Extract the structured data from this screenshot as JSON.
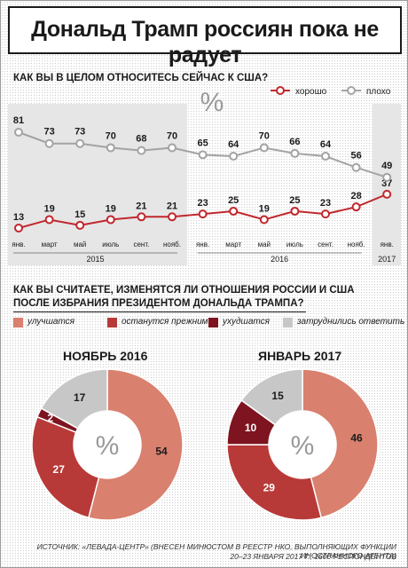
{
  "title": "Дональд Трамп россиян пока не радует",
  "question1": "КАК ВЫ В ЦЕЛОМ ОТНОСИТЕСЬ СЕЙЧАС К США?",
  "question2_line1": "КАК ВЫ СЧИТАЕТЕ, ИЗМЕНЯТСЯ ЛИ ОТНОШЕНИЯ РОССИИ И США",
  "question2_line2": "ПОСЛЕ ИЗБРАНИЯ ПРЕЗИДЕНТОМ ДОНАЛЬДА ТРАМПА?",
  "percent_sign": "%",
  "colors": {
    "good": "#c1272d",
    "bad": "#a3a3a3",
    "improve": "#d9806f",
    "same": "#b83a38",
    "worse": "#7d1420",
    "hard": "#c7c7c7"
  },
  "chart_data": [
    {
      "type": "line",
      "title": "КАК ВЫ В ЦЕЛОМ ОТНОСИТЕСЬ СЕЙЧАС К США?",
      "x": [
        "янв.",
        "март",
        "май",
        "июль",
        "сент.",
        "нояб.",
        "янв.",
        "март",
        "май",
        "июль",
        "сент.",
        "нояб.",
        "янв."
      ],
      "years": [
        {
          "label": "2015",
          "from": 0,
          "to": 5
        },
        {
          "label": "2016",
          "from": 6,
          "to": 11
        },
        {
          "label": "2017",
          "from": 12,
          "to": 12
        }
      ],
      "series": [
        {
          "name": "хорошо",
          "color": "#c1272d",
          "values": [
            13,
            19,
            15,
            19,
            21,
            21,
            23,
            25,
            19,
            25,
            23,
            28,
            37
          ]
        },
        {
          "name": "плохо",
          "color": "#a3a3a3",
          "values": [
            81,
            73,
            73,
            70,
            68,
            70,
            65,
            64,
            70,
            66,
            64,
            56,
            49
          ]
        }
      ],
      "ylim": [
        0,
        100
      ],
      "legend_position": "top-right"
    },
    {
      "type": "pie",
      "title": "НОЯБРЬ 2016",
      "categories": [
        "улучшатся",
        "останутся прежними",
        "ухудшатся",
        "затруднились ответить"
      ],
      "values": [
        54,
        27,
        2,
        17
      ],
      "colors": [
        "#d9806f",
        "#b83a38",
        "#7d1420",
        "#c7c7c7"
      ]
    },
    {
      "type": "pie",
      "title": "ЯНВАРЬ 2017",
      "categories": [
        "улучшатся",
        "останутся прежними",
        "ухудшатся",
        "затруднились ответить"
      ],
      "values": [
        46,
        29,
        10,
        15
      ],
      "colors": [
        "#d9806f",
        "#b83a38",
        "#7d1420",
        "#c7c7c7"
      ]
    }
  ],
  "source_line1": "ИСТОЧНИК: «ЛЕВАДА-ЦЕНТР» (ВНЕСЕН МИНЮСТОМ В РЕЕСТР НКО, ВЫПОЛНЯЮЩИХ ФУНКЦИИ ИНОСТРАННОГО АГЕНТА)",
  "source_line2": "20–23 ЯНВАРЯ 2017 Г., 1600 РЕСПОНДЕНТОВ"
}
